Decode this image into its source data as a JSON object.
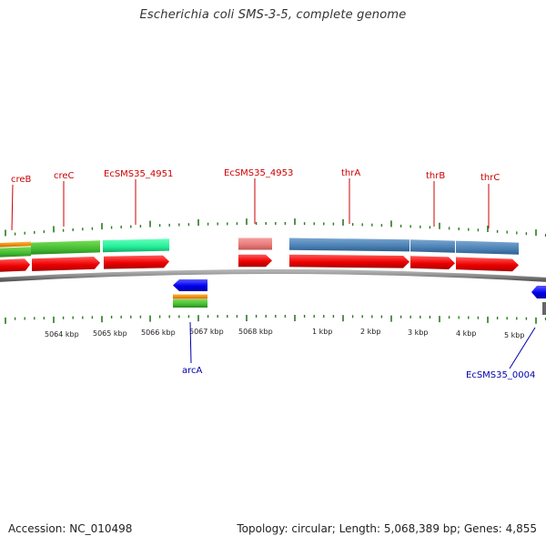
{
  "title": "Escherichia coli SMS-3-5, complete genome",
  "accession_label": "Accession: NC_010498",
  "summary_label": "Topology: circular; Length: 5,068,389 bp; Genes: 4,855",
  "colors": {
    "red_feature": "#ee0000",
    "orange_feature": "#f08a00",
    "green_feature": "#44bb33",
    "mint_feature": "#22ee99",
    "pink_feature": "#e87878",
    "steel_feature": "#4a80b4",
    "blue_feature": "#0000ee",
    "backbone": "#888888",
    "tick": "#2a7a1f",
    "label_red": "#cc0000",
    "label_blue": "#0000aa"
  },
  "scale_labels": [
    "5064 kbp",
    "5065 kbp",
    "5066 kbp",
    "5067 kbp",
    "5068 kbp",
    "1 kbp",
    "2 kbp",
    "3 kbp",
    "4 kbp",
    "5 kbp"
  ],
  "forward_gene_labels": [
    "creB",
    "creC",
    "EcSMS35_4951",
    "EcSMS35_4953",
    "thrA",
    "thrB",
    "thrC"
  ],
  "reverse_gene_labels": [
    "arcA",
    "EcSMS35_0004"
  ]
}
